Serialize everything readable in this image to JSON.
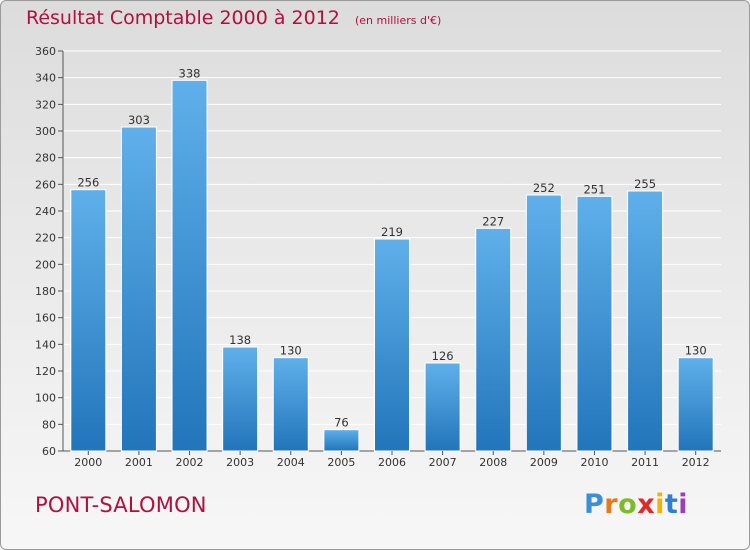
{
  "header": {
    "title": "Résultat Comptable 2000 à 2012",
    "subtitle": "(en milliers d'€)"
  },
  "footer": {
    "commune": "PONT-SALOMON",
    "logo_letters": [
      "P",
      "r",
      "o",
      "x",
      "i",
      "t",
      "i"
    ]
  },
  "colors": {
    "title": "#b0103e",
    "bar_top": "#5fb0ea",
    "bar_bottom": "#2275ba",
    "grid": "#ffffff"
  },
  "chart_data": {
    "type": "bar",
    "title": "Résultat Comptable 2000 à 2012",
    "subtitle": "(en milliers d'€)",
    "xlabel": "",
    "ylabel": "",
    "categories": [
      "2000",
      "2001",
      "2002",
      "2003",
      "2004",
      "2005",
      "2006",
      "2007",
      "2008",
      "2009",
      "2010",
      "2011",
      "2012"
    ],
    "values": [
      256,
      303,
      338,
      138,
      130,
      76,
      219,
      126,
      227,
      252,
      251,
      255,
      130
    ],
    "ylim": [
      60,
      360
    ],
    "yticks": [
      60,
      80,
      100,
      120,
      140,
      160,
      180,
      200,
      220,
      240,
      260,
      280,
      300,
      320,
      340,
      360
    ],
    "grid": true,
    "legend": "none"
  }
}
